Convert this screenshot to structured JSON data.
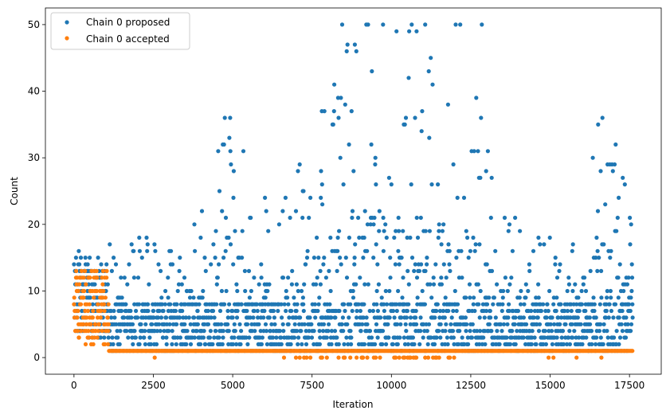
{
  "chart_data": {
    "type": "scatter",
    "title": "",
    "xlabel": "Iteration",
    "ylabel": "Count",
    "xlim": [
      -900,
      18500
    ],
    "ylim": [
      -2.5,
      52.5
    ],
    "xticks": [
      0,
      2500,
      5000,
      7500,
      10000,
      12500,
      15000,
      17500
    ],
    "yticks": [
      0,
      10,
      20,
      30,
      40,
      50
    ],
    "grid": false,
    "legend_position": "top-left",
    "series": [
      {
        "name": "Chain 0 proposed",
        "color": "#1f77b4",
        "marker_radius": 2.6,
        "approx_iterations": 17600,
        "description_values": {
          "burn_in_range": [
            0,
            1100
          ],
          "burn_in_count_range": [
            3,
            19
          ],
          "main_count_range": [
            1,
            50
          ]
        }
      },
      {
        "name": "Chain 0 accepted",
        "color": "#ff7f0e",
        "marker_radius": 2.6,
        "description_values": {
          "burn_in_range": [
            0,
            1100
          ],
          "burn_in_count_range": [
            2,
            14
          ],
          "main_count_mostly": 1,
          "occasional_zero": true
        }
      }
    ]
  }
}
